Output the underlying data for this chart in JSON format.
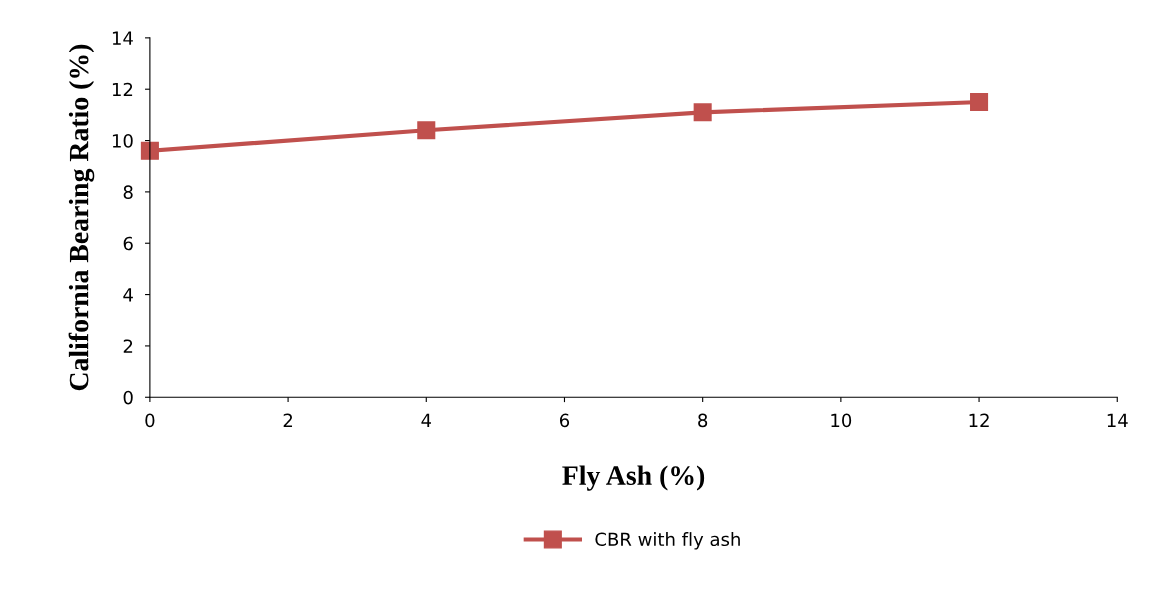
{
  "chart_data": {
    "type": "line",
    "xlabel": "Fly Ash (%)",
    "ylabel": "California Bearing Ratio (%)",
    "x": [
      0,
      4,
      8,
      12
    ],
    "series": [
      {
        "name": "CBR with fly ash",
        "color": "#c0504d",
        "values": [
          9.6,
          10.4,
          11.1,
          11.5
        ]
      }
    ],
    "xlim": [
      0,
      14
    ],
    "xticks": [
      0,
      2,
      4,
      6,
      8,
      10,
      12,
      14
    ],
    "ylim": [
      0,
      14
    ],
    "yticks": [
      0,
      2,
      4,
      6,
      8,
      10,
      12,
      14
    ],
    "grid": false,
    "legend": "bottom",
    "marker": "square",
    "line_style": "solid"
  }
}
